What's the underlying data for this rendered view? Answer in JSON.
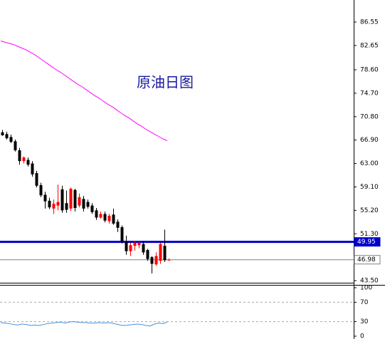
{
  "chart_data": [
    {
      "type": "candlestick",
      "title": "原油日图",
      "title_color": "#1a1aa0",
      "open": [
        68.2,
        67.9,
        67.4,
        66.7,
        65.2,
        63.4,
        63.6,
        63.0,
        61.4,
        59.4,
        57.8,
        56.8,
        55.5,
        56.0,
        58.7,
        56.4,
        55.5,
        58.6,
        56.0,
        57.1,
        56.6,
        56.0,
        55.2,
        54.0,
        54.6,
        53.4,
        54.5,
        53.3,
        52.4,
        50.0,
        48.4,
        49.3,
        49.4,
        49.6,
        48.6,
        47.4,
        46.2,
        46.8,
        49.3,
        46.9
      ],
      "high": [
        68.6,
        68.3,
        67.8,
        67.0,
        65.6,
        64.2,
        64.0,
        63.4,
        61.8,
        59.8,
        58.3,
        57.3,
        57.0,
        59.5,
        59.3,
        58.5,
        59.0,
        58.8,
        58.0,
        57.6,
        57.0,
        56.4,
        55.6,
        55.0,
        55.0,
        54.6,
        55.5,
        53.7,
        52.7,
        51.0,
        49.8,
        50.1,
        50.0,
        50.1,
        48.8,
        47.6,
        48.2,
        49.8,
        52.0,
        47.2
      ],
      "low": [
        67.6,
        67.0,
        66.4,
        65.0,
        62.8,
        63.0,
        62.5,
        60.8,
        59.0,
        57.4,
        55.5,
        55.4,
        54.6,
        55.2,
        54.8,
        54.8,
        55.1,
        55.0,
        55.7,
        55.0,
        55.5,
        54.6,
        53.6,
        53.8,
        53.2,
        53.0,
        52.8,
        51.6,
        49.7,
        47.8,
        47.6,
        48.5,
        48.9,
        47.8,
        46.8,
        44.7,
        46.0,
        46.3,
        46.6,
        46.8
      ],
      "close": [
        67.7,
        67.2,
        66.6,
        65.2,
        63.4,
        64.0,
        62.8,
        61.2,
        59.3,
        57.7,
        56.7,
        55.7,
        56.3,
        56.6,
        55.2,
        55.3,
        58.8,
        55.6,
        57.4,
        55.5,
        55.8,
        54.9,
        54.0,
        54.6,
        53.5,
        54.3,
        53.0,
        52.3,
        50.0,
        48.4,
        49.4,
        49.8,
        49.8,
        48.2,
        47.1,
        46.3,
        47.6,
        49.6,
        46.9,
        46.98
      ],
      "up_color": "#ff0000",
      "down_color": "#000000",
      "ylim": [
        43.15,
        90.22
      ],
      "yticks": [
        86.55,
        82.65,
        {
          "value": 78.6,
          "label": "78.60"
        },
        {
          "value": 74.7,
          "label": "74.70"
        },
        {
          "value": 70.8,
          "label": "70.80"
        },
        {
          "value": 66.9,
          "label": "66.90"
        },
        {
          "value": 63,
          "label": "63.00"
        },
        {
          "value": 59.1,
          "label": "59.10"
        },
        {
          "value": 55.2,
          "label": "55.20"
        },
        {
          "value": 51.3,
          "label": "51.30"
        },
        {
          "value": 43.5,
          "label": "43.50"
        }
      ],
      "overlays": [
        {
          "type": "line",
          "color": "#ff00ff",
          "values": [
            83.4,
            83.2,
            83.0,
            82.8,
            82.5,
            82.2,
            81.9,
            81.5,
            81.1,
            80.6,
            80.1,
            79.6,
            79.1,
            78.6,
            78.2,
            77.7,
            77.2,
            76.7,
            76.2,
            75.8,
            75.3,
            74.8,
            74.3,
            73.9,
            73.4,
            72.9,
            72.5,
            72.0,
            71.5,
            71.0,
            70.6,
            70.1,
            69.6,
            69.2,
            68.7,
            68.3,
            67.9,
            67.5,
            67.1,
            66.8
          ]
        }
      ],
      "hlines": [
        {
          "value": 49.95,
          "color": "#0000cc"
        },
        {
          "value": 46.98,
          "color": "#808080"
        }
      ]
    },
    {
      "type": "line",
      "series": [
        {
          "color": "#4a90d9",
          "values": [
            28,
            27,
            26,
            24,
            23,
            25,
            24,
            22,
            23,
            22,
            24,
            26,
            27,
            28,
            29,
            27,
            29,
            30,
            29,
            28,
            28,
            27,
            27,
            28,
            27,
            28,
            27,
            25,
            23,
            22,
            23,
            24,
            25,
            24,
            22,
            21,
            25,
            27,
            26,
            29
          ]
        }
      ],
      "ylim": [
        0,
        100
      ],
      "yticks": [
        100,
        70,
        30,
        0
      ],
      "dashed_grid": [
        70,
        30
      ]
    }
  ]
}
